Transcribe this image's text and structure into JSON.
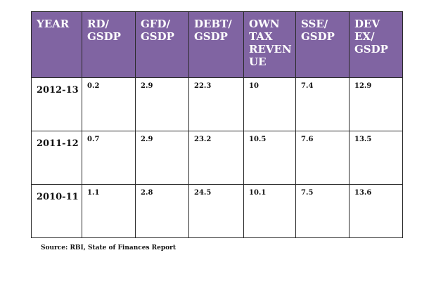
{
  "chart_data": {
    "type": "table",
    "columns": [
      "YEAR",
      "RD/ GSDP",
      "GFD/ GSDP",
      "DEBT/ GSDP",
      "OWN TAX REVEN UE",
      "SSE/ GSDP",
      "DEV EX/ GSDP"
    ],
    "rows": [
      [
        "2012-13",
        "0.2",
        "2.9",
        "22.3",
        "10",
        "7.4",
        "12.9"
      ],
      [
        "2011-12",
        "0.7",
        "2.9",
        "23.2",
        "10.5",
        "7.6",
        "13.5"
      ],
      [
        "2010-11",
        "1.1",
        "2.8",
        "24.5",
        "10.1",
        "7.5",
        "13.6"
      ]
    ],
    "source": "Source: RBI, State of Finances Report"
  },
  "colors": {
    "header_bg": "#8064a2",
    "header_text": "#ffffff",
    "border": "#2b2b2b"
  }
}
